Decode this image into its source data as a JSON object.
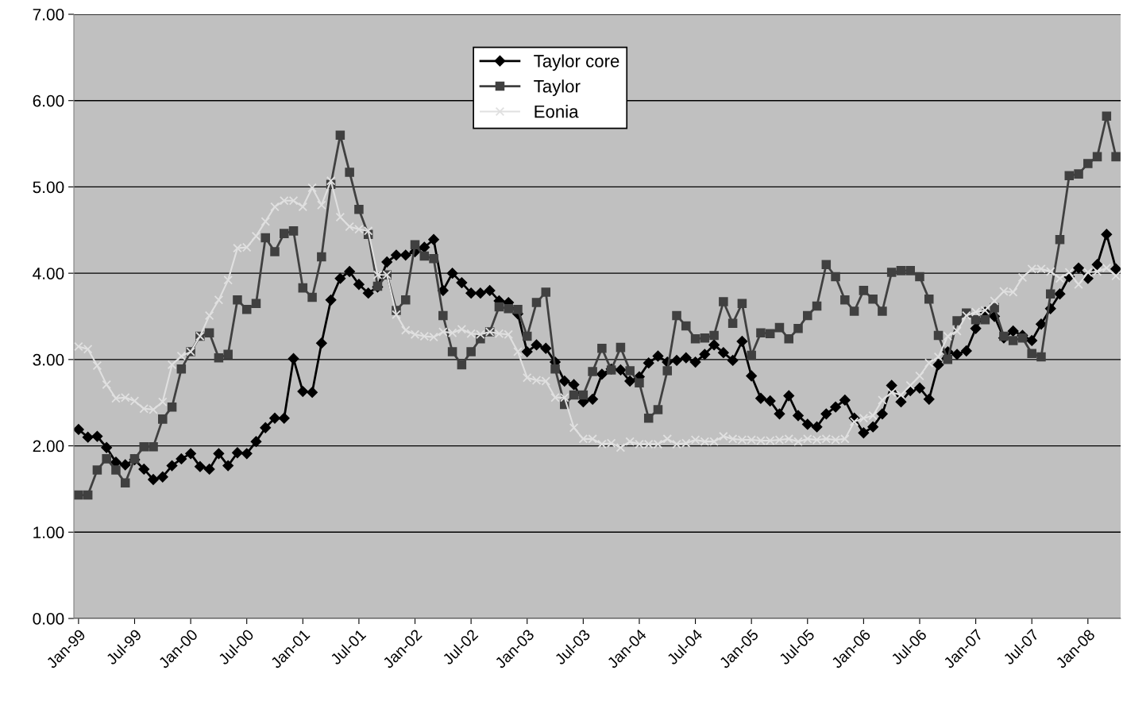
{
  "chart_data": {
    "type": "line",
    "categories": [
      "Jan-99",
      null,
      null,
      null,
      null,
      null,
      "Jul-99",
      null,
      null,
      null,
      null,
      null,
      "Jan-00",
      null,
      null,
      null,
      null,
      null,
      "Jul-00",
      null,
      null,
      null,
      null,
      null,
      "Jan-01",
      null,
      null,
      null,
      null,
      null,
      "Jul-01",
      null,
      null,
      null,
      null,
      null,
      "Jan-02",
      null,
      null,
      null,
      null,
      null,
      "Jul-02",
      null,
      null,
      null,
      null,
      null,
      "Jan-03",
      null,
      null,
      null,
      null,
      null,
      "Jul-03",
      null,
      null,
      null,
      null,
      null,
      "Jan-04",
      null,
      null,
      null,
      null,
      null,
      "Jul-04",
      null,
      null,
      null,
      null,
      null,
      "Jan-05",
      null,
      null,
      null,
      null,
      null,
      "Jul-05",
      null,
      null,
      null,
      null,
      null,
      "Jan-06",
      null,
      null,
      null,
      null,
      null,
      "Jul-06",
      null,
      null,
      null,
      null,
      null,
      "Jan-07",
      null,
      null,
      null,
      null,
      null,
      "Jul-07",
      null,
      null,
      null,
      null,
      null,
      "Jan-08",
      null,
      null,
      null
    ],
    "series": [
      {
        "name": "Taylor core",
        "color": "#000000",
        "marker": "diamond",
        "values": [
          2.19,
          2.1,
          2.11,
          1.98,
          1.81,
          1.78,
          1.84,
          1.73,
          1.61,
          1.64,
          1.77,
          1.85,
          1.91,
          1.76,
          1.73,
          1.91,
          1.77,
          1.92,
          1.91,
          2.05,
          2.21,
          2.32,
          2.32,
          3.01,
          2.63,
          2.62,
          3.19,
          3.69,
          3.94,
          4.02,
          3.87,
          3.77,
          3.84,
          4.13,
          4.21,
          4.21,
          4.25,
          4.3,
          4.39,
          3.8,
          4.0,
          3.89,
          3.77,
          3.77,
          3.8,
          3.68,
          3.66,
          3.53,
          3.09,
          3.17,
          3.13,
          2.97,
          2.75,
          2.71,
          2.51,
          2.54,
          2.83,
          2.89,
          2.88,
          2.75,
          2.8,
          2.96,
          3.04,
          2.97,
          2.99,
          3.02,
          2.97,
          3.06,
          3.17,
          3.08,
          2.99,
          3.21,
          2.81,
          2.55,
          2.52,
          2.37,
          2.58,
          2.35,
          2.25,
          2.22,
          2.37,
          2.45,
          2.53,
          2.32,
          2.15,
          2.22,
          2.37,
          2.7,
          2.51,
          2.64,
          2.67,
          2.54,
          2.94,
          3.09,
          3.06,
          3.1,
          3.36,
          3.55,
          3.5,
          3.25,
          3.33,
          3.28,
          3.22,
          3.41,
          3.59,
          3.76,
          3.96,
          4.06,
          3.94,
          4.1,
          4.45,
          4.05
        ]
      },
      {
        "name": "Taylor",
        "color": "#404040",
        "marker": "square",
        "values": [
          1.43,
          1.43,
          1.72,
          1.85,
          1.72,
          1.57,
          1.85,
          1.99,
          1.99,
          2.31,
          2.45,
          2.89,
          3.09,
          3.27,
          3.31,
          3.02,
          3.06,
          3.69,
          3.58,
          3.65,
          4.41,
          4.25,
          4.46,
          4.49,
          3.83,
          3.72,
          4.19,
          5.03,
          5.6,
          5.17,
          4.74,
          4.45,
          3.85,
          3.98,
          3.57,
          3.69,
          4.33,
          4.2,
          4.17,
          3.51,
          3.09,
          2.94,
          3.09,
          3.24,
          3.32,
          3.61,
          3.59,
          3.58,
          3.27,
          3.66,
          3.78,
          2.89,
          2.48,
          2.59,
          2.59,
          2.86,
          3.13,
          2.88,
          3.14,
          2.87,
          2.73,
          2.32,
          2.42,
          2.87,
          3.51,
          3.39,
          3.24,
          3.25,
          3.28,
          3.67,
          3.42,
          3.65,
          3.05,
          3.31,
          3.3,
          3.37,
          3.24,
          3.36,
          3.51,
          3.62,
          4.1,
          3.96,
          3.69,
          3.56,
          3.8,
          3.7,
          3.56,
          4.01,
          4.03,
          4.03,
          3.96,
          3.7,
          3.28,
          3.0,
          3.45,
          3.54,
          3.46,
          3.46,
          3.6,
          3.27,
          3.22,
          3.25,
          3.07,
          3.03,
          3.76,
          4.39,
          5.13,
          5.15,
          5.27,
          5.35,
          5.82,
          5.35
        ]
      },
      {
        "name": "Eonia",
        "color": "#e0e0e0",
        "marker": "cross",
        "values": [
          3.15,
          3.12,
          2.93,
          2.71,
          2.55,
          2.56,
          2.52,
          2.43,
          2.42,
          2.51,
          2.94,
          3.04,
          3.09,
          3.27,
          3.51,
          3.69,
          3.92,
          4.29,
          4.3,
          4.43,
          4.6,
          4.77,
          4.84,
          4.84,
          4.77,
          4.99,
          4.79,
          5.07,
          4.65,
          4.54,
          4.51,
          4.49,
          3.98,
          3.98,
          3.52,
          3.34,
          3.29,
          3.27,
          3.26,
          3.32,
          3.31,
          3.35,
          3.3,
          3.29,
          3.32,
          3.3,
          3.29,
          3.09,
          2.79,
          2.76,
          2.75,
          2.56,
          2.56,
          2.21,
          2.08,
          2.08,
          2.02,
          2.03,
          1.98,
          2.05,
          2.02,
          2.02,
          2.02,
          2.08,
          2.02,
          2.03,
          2.07,
          2.05,
          2.05,
          2.11,
          2.08,
          2.07,
          2.07,
          2.06,
          2.06,
          2.07,
          2.08,
          2.05,
          2.08,
          2.07,
          2.08,
          2.07,
          2.08,
          2.28,
          2.32,
          2.35,
          2.53,
          2.62,
          2.59,
          2.7,
          2.81,
          2.96,
          3.03,
          3.27,
          3.33,
          3.51,
          3.55,
          3.57,
          3.68,
          3.79,
          3.78,
          3.95,
          4.05,
          4.05,
          4.02,
          3.94,
          4.01,
          3.87,
          4.01,
          4.02,
          4.06,
          3.97
        ]
      }
    ],
    "ylim": [
      0,
      7
    ],
    "yticks": [
      {
        "value": 0,
        "label": "0.00"
      },
      {
        "value": 1,
        "label": "1.00"
      },
      {
        "value": 2,
        "label": "2.00"
      },
      {
        "value": 3,
        "label": "3.00"
      },
      {
        "value": 4,
        "label": "4.00"
      },
      {
        "value": 5,
        "label": "5.00"
      },
      {
        "value": 6,
        "label": "6.00"
      },
      {
        "value": 7,
        "label": "7.00"
      }
    ],
    "grid": "y",
    "legend": "top",
    "line_style": "solid"
  }
}
